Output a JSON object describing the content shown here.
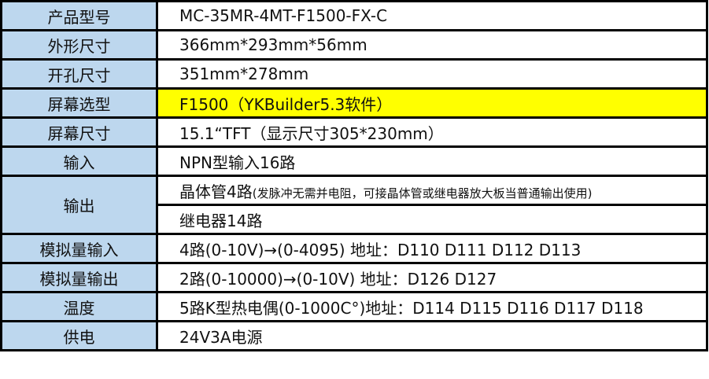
{
  "rows": [
    {
      "label": "产品型号",
      "value": "MC-35MR-4MT-F1500-FX-C"
    },
    {
      "label": "外形尺寸",
      "value": "366mm*293mm*56mm"
    },
    {
      "label": "开孔尺寸",
      "value": "351mm*278mm"
    },
    {
      "label": "屏幕选型",
      "value": "F1500（YKBuilder5.3软件）",
      "highlight": "#FFFF00"
    },
    {
      "label": "屏幕尺寸",
      "value": "15.1“TFT（显示尺寸305*230mm）"
    },
    {
      "label": "输入",
      "value": "NPN型输入16路"
    },
    {
      "label": "输出",
      "value": "晶体管4路",
      "note": "(发脉冲无需并电阻，可接晶体管或继电器放大板当普通输出使用)",
      "value2": "继电器14路"
    },
    {
      "label": "模拟量输入",
      "value": "4路(0-10V)→(0-4095) 地址：D110  D111  D112  D113"
    },
    {
      "label": "模拟量输出",
      "value": "2路(0-10000)→(0-10V) 地址：D126 D127"
    },
    {
      "label": "温度",
      "value": "5路K型热电偶(0-1000C°)地址：D114 D115 D116 D117 D118"
    },
    {
      "label": "供电",
      "value": "24V3A电源"
    }
  ],
  "colors": {
    "label_bg": "#BDD7EE",
    "highlight": "#FFFF00",
    "border": "#000000"
  }
}
